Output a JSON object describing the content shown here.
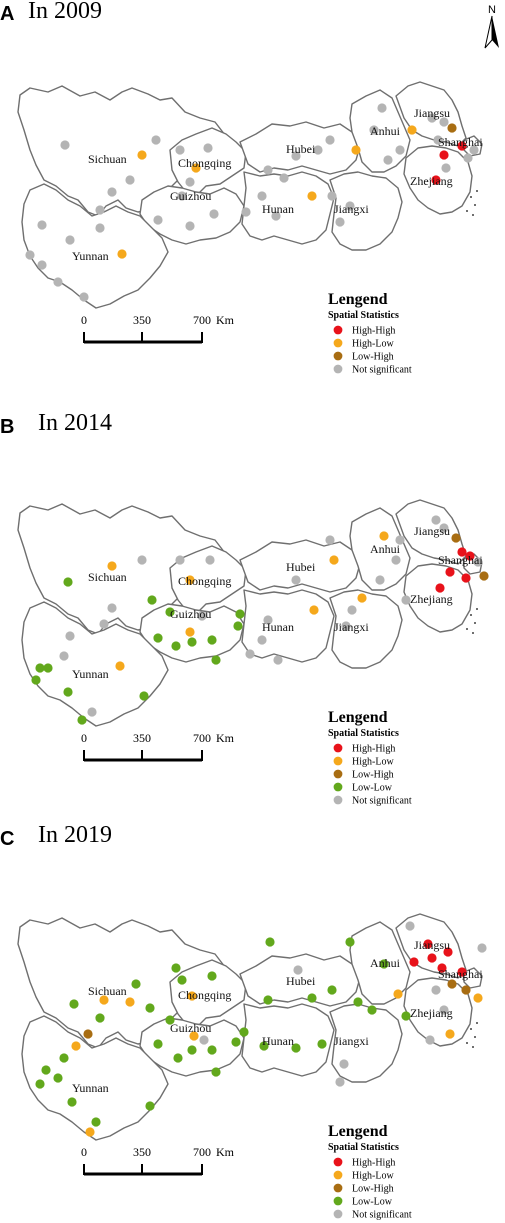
{
  "north": {
    "label": "N"
  },
  "scale": {
    "ticks": [
      "0",
      "350",
      "700"
    ],
    "unit": "Km"
  },
  "legend": {
    "title": "Lengend",
    "subtitle": "Spatial Statistics",
    "categories": {
      "HH": {
        "label": "High-High",
        "color": "#e8121a"
      },
      "HL": {
        "label": "High-Low",
        "color": "#f5a81c"
      },
      "LH": {
        "label": "Low-High",
        "color": "#a86d12"
      },
      "LL": {
        "label": "Low-Low",
        "color": "#62a81c"
      },
      "NS": {
        "label": "Not significant",
        "color": "#b4b4b4"
      }
    }
  },
  "provinces": [
    "Sichuan",
    "Chongqing",
    "Hubei",
    "Anhui",
    "Jiangsu",
    "Shanghai",
    "Zhejiang",
    "Guizhou",
    "Hunan",
    "Jiangxi",
    "Yunnan"
  ],
  "panels": [
    {
      "letter": "A",
      "year": "In 2009",
      "legend_items": [
        "HH",
        "HL",
        "LH",
        "NS"
      ]
    },
    {
      "letter": "B",
      "year": "In 2014",
      "legend_items": [
        "HH",
        "HL",
        "LH",
        "LL",
        "NS"
      ]
    },
    {
      "letter": "C",
      "year": "In 2019",
      "legend_items": [
        "HH",
        "HL",
        "LH",
        "LL",
        "NS"
      ]
    }
  ]
}
